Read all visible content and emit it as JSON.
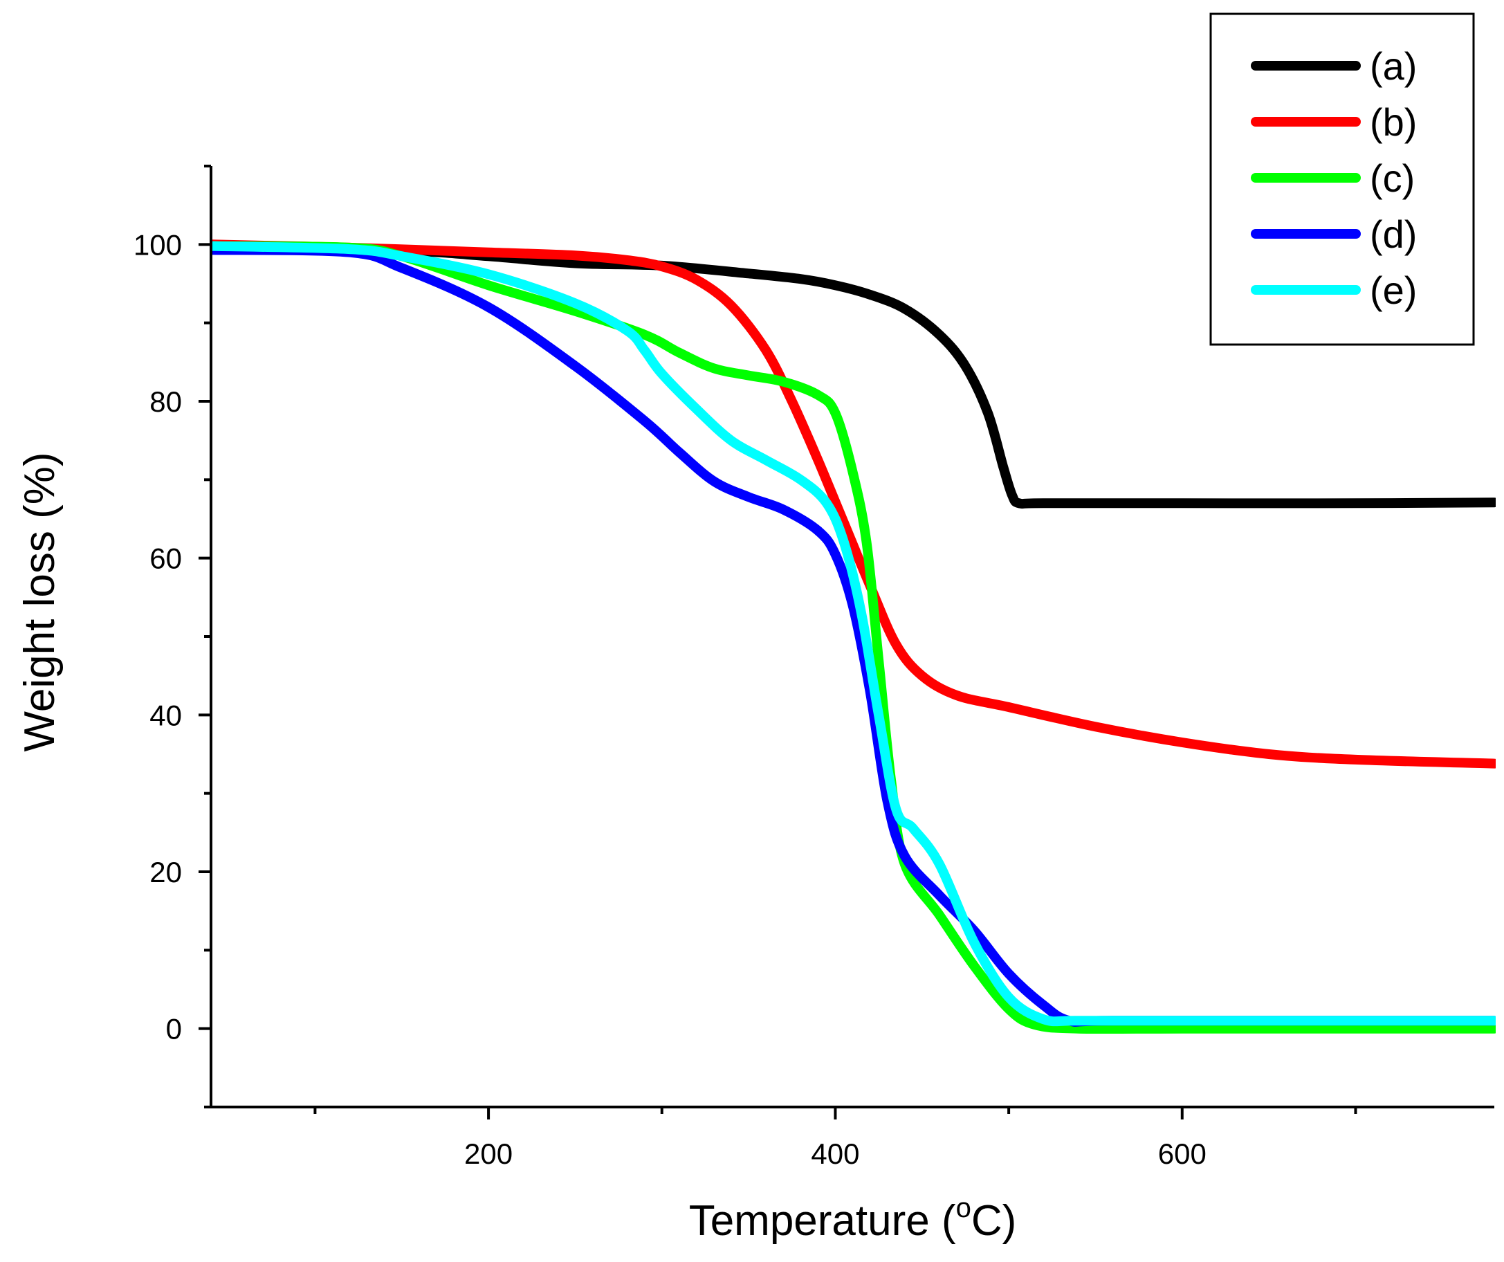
{
  "chart_data": {
    "type": "line",
    "title": "",
    "xlabel": "Temperature (",
    "xlabel_sup": "o",
    "xlabel_tail": "C)",
    "ylabel": "Weight loss (%)",
    "xlim": [
      40,
      780
    ],
    "ylim": [
      -10,
      110
    ],
    "xticks": [
      200,
      400,
      600
    ],
    "xticks_minor": [
      100,
      300,
      500,
      700
    ],
    "yticks": [
      0,
      20,
      40,
      60,
      80,
      100
    ],
    "yticks_minor": [
      -10,
      10,
      30,
      50,
      70,
      90,
      110
    ],
    "grid": false,
    "legend_position": "top-right",
    "series": [
      {
        "name": "(a)",
        "color": "#000000",
        "points": [
          [
            40,
            99.6
          ],
          [
            150,
            99.2
          ],
          [
            200,
            98.5
          ],
          [
            250,
            97.6
          ],
          [
            300,
            97.3
          ],
          [
            350,
            96.3
          ],
          [
            380,
            95.6
          ],
          [
            400,
            94.8
          ],
          [
            420,
            93.6
          ],
          [
            440,
            91.8
          ],
          [
            460,
            88.5
          ],
          [
            475,
            84.5
          ],
          [
            488,
            78.5
          ],
          [
            497,
            71.5
          ],
          [
            502,
            68.0
          ],
          [
            506,
            67.0
          ],
          [
            520,
            67.0
          ],
          [
            600,
            67.0
          ],
          [
            700,
            67.0
          ],
          [
            780,
            67.1
          ]
        ]
      },
      {
        "name": "(b)",
        "color": "#ff0000",
        "points": [
          [
            40,
            100.0
          ],
          [
            120,
            99.6
          ],
          [
            200,
            99.0
          ],
          [
            250,
            98.6
          ],
          [
            280,
            98.0
          ],
          [
            300,
            97.2
          ],
          [
            320,
            95.5
          ],
          [
            340,
            92.2
          ],
          [
            360,
            86.5
          ],
          [
            375,
            80.0
          ],
          [
            390,
            72.5
          ],
          [
            405,
            64.5
          ],
          [
            420,
            56.5
          ],
          [
            435,
            49.0
          ],
          [
            450,
            45.0
          ],
          [
            470,
            42.5
          ],
          [
            500,
            41.0
          ],
          [
            550,
            38.5
          ],
          [
            600,
            36.5
          ],
          [
            650,
            35.0
          ],
          [
            700,
            34.3
          ],
          [
            780,
            33.8
          ]
        ]
      },
      {
        "name": "(c)",
        "color": "#00ff00",
        "points": [
          [
            40,
            99.8
          ],
          [
            120,
            99.6
          ],
          [
            150,
            98.5
          ],
          [
            200,
            94.8
          ],
          [
            250,
            91.5
          ],
          [
            290,
            88.5
          ],
          [
            310,
            86.2
          ],
          [
            330,
            84.2
          ],
          [
            350,
            83.3
          ],
          [
            370,
            82.5
          ],
          [
            390,
            80.8
          ],
          [
            400,
            78.5
          ],
          [
            410,
            71.0
          ],
          [
            418,
            62.0
          ],
          [
            425,
            47.0
          ],
          [
            432,
            32.0
          ],
          [
            440,
            21.0
          ],
          [
            460,
            14.5
          ],
          [
            480,
            8.0
          ],
          [
            500,
            2.5
          ],
          [
            515,
            0.5
          ],
          [
            540,
            0.0
          ],
          [
            600,
            0.0
          ],
          [
            700,
            0.0
          ],
          [
            780,
            0.0
          ]
        ]
      },
      {
        "name": "(d)",
        "color": "#0000ff",
        "points": [
          [
            40,
            99.3
          ],
          [
            120,
            99.0
          ],
          [
            150,
            97.0
          ],
          [
            200,
            92.0
          ],
          [
            250,
            84.5
          ],
          [
            290,
            77.5
          ],
          [
            310,
            73.5
          ],
          [
            330,
            69.8
          ],
          [
            350,
            67.8
          ],
          [
            370,
            66.2
          ],
          [
            390,
            63.5
          ],
          [
            400,
            60.5
          ],
          [
            410,
            54.0
          ],
          [
            420,
            43.0
          ],
          [
            430,
            29.0
          ],
          [
            440,
            22.0
          ],
          [
            460,
            17.0
          ],
          [
            480,
            12.5
          ],
          [
            500,
            7.0
          ],
          [
            520,
            3.0
          ],
          [
            535,
            1.0
          ],
          [
            560,
            1.0
          ],
          [
            700,
            1.0
          ],
          [
            780,
            1.0
          ]
        ]
      },
      {
        "name": "(e)",
        "color": "#00ffff",
        "points": [
          [
            40,
            99.8
          ],
          [
            120,
            99.4
          ],
          [
            150,
            98.5
          ],
          [
            200,
            96.2
          ],
          [
            250,
            92.5
          ],
          [
            280,
            89.0
          ],
          [
            290,
            86.5
          ],
          [
            300,
            83.5
          ],
          [
            320,
            79.0
          ],
          [
            340,
            75.0
          ],
          [
            360,
            72.5
          ],
          [
            380,
            70.0
          ],
          [
            395,
            67.0
          ],
          [
            405,
            62.0
          ],
          [
            415,
            53.0
          ],
          [
            425,
            40.0
          ],
          [
            435,
            28.0
          ],
          [
            445,
            25.5
          ],
          [
            460,
            21.0
          ],
          [
            480,
            11.0
          ],
          [
            500,
            4.0
          ],
          [
            520,
            1.2
          ],
          [
            540,
            1.0
          ],
          [
            600,
            1.0
          ],
          [
            700,
            1.0
          ],
          [
            780,
            1.0
          ]
        ]
      }
    ]
  }
}
